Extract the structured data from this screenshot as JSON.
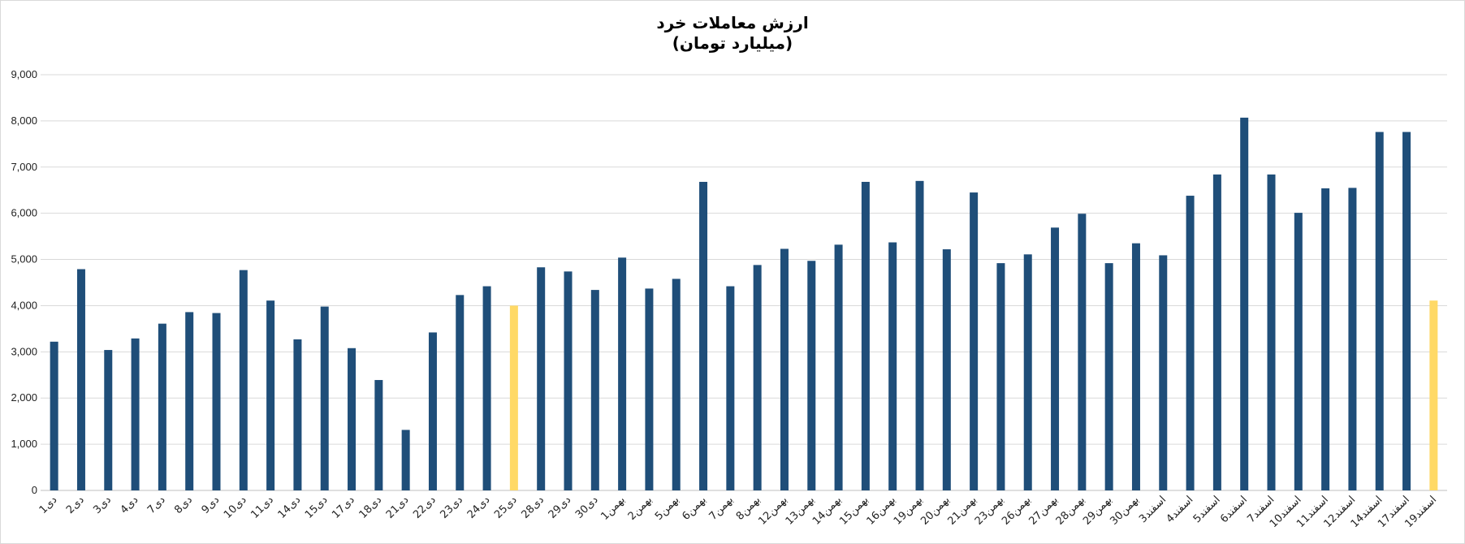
{
  "chart_data": {
    "type": "bar",
    "title": "ارزش معاملات خرد",
    "subtitle": "(میلیارد تومان)",
    "xlabel": "",
    "ylabel": "",
    "ylim": [
      0,
      9000
    ],
    "yticks": [
      0,
      1000,
      2000,
      3000,
      4000,
      5000,
      6000,
      7000,
      8000,
      9000
    ],
    "ytick_labels": [
      "0",
      "1,000",
      "2,000",
      "3,000",
      "4,000",
      "5,000",
      "6,000",
      "7,000",
      "8,000",
      "9,000"
    ],
    "grid": true,
    "legend": "none",
    "colors": {
      "default": "#1f4e79",
      "highlight": "#ffd966",
      "grid": "#d9d9d9",
      "axis": "#bfbfbf"
    },
    "categories": [
      "1دی",
      "2دی",
      "3دی",
      "4دی",
      "7دی",
      "8دی",
      "9دی",
      "10دی",
      "11دی",
      "14دی",
      "15دی",
      "17دی",
      "18دی",
      "21دی",
      "22دی",
      "23دی",
      "24دی",
      "25دی",
      "28دی",
      "29دی",
      "30دی",
      "1بهمن",
      "2بهمن",
      "5بهمن",
      "6بهمن",
      "7بهمن",
      "8بهمن",
      "12بهمن",
      "13بهمن",
      "14بهمن",
      "15بهمن",
      "16بهمن",
      "19بهمن",
      "20بهمن",
      "21بهمن",
      "23بهمن",
      "26بهمن",
      "27بهمن",
      "28بهمن",
      "29بهمن",
      "30بهمن",
      "3اسفند",
      "4اسفند",
      "5اسفند",
      "6اسفند",
      "7اسفند",
      "10اسفند",
      "11اسفند",
      "12اسفند",
      "14اسفند",
      "17اسفند",
      "19اسفند"
    ],
    "values": [
      3220,
      4790,
      3040,
      3290,
      3610,
      3860,
      3840,
      4770,
      4110,
      3270,
      3980,
      3080,
      2390,
      1310,
      3420,
      4230,
      4420,
      4000,
      4830,
      4740,
      4340,
      5040,
      4370,
      4580,
      6680,
      4420,
      4880,
      5230,
      4970,
      5320,
      6680,
      5370,
      6700,
      5220,
      6450,
      4920,
      5110,
      5690,
      5990,
      4920,
      5350,
      5090,
      6380,
      6840,
      8070,
      6840,
      6010,
      6540,
      6550,
      7760,
      7760,
      4110
    ],
    "highlight": [
      false,
      false,
      false,
      false,
      false,
      false,
      false,
      false,
      false,
      false,
      false,
      false,
      false,
      false,
      false,
      false,
      false,
      true,
      false,
      false,
      false,
      false,
      false,
      false,
      false,
      false,
      false,
      false,
      false,
      false,
      false,
      false,
      false,
      false,
      false,
      false,
      false,
      false,
      false,
      false,
      false,
      false,
      false,
      false,
      false,
      false,
      false,
      false,
      false,
      false,
      false,
      true
    ]
  }
}
